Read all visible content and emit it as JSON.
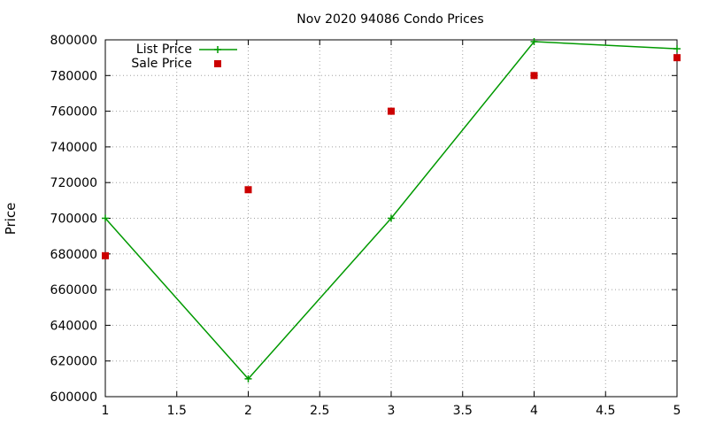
{
  "chart_data": {
    "type": "line",
    "title": "Nov 2020 94086 Condo Prices",
    "xlabel": "",
    "ylabel": "Price",
    "xlim": [
      1,
      5
    ],
    "ylim": [
      600000,
      800000
    ],
    "x_ticks": [
      "1",
      "1.5",
      "2",
      "2.5",
      "3",
      "3.5",
      "4",
      "4.5",
      "5"
    ],
    "y_ticks": [
      "600000",
      "620000",
      "640000",
      "660000",
      "680000",
      "700000",
      "720000",
      "740000",
      "760000",
      "780000",
      "800000"
    ],
    "grid": true,
    "legend_position": "top-left",
    "series": [
      {
        "name": "List Price",
        "style": "line+cross",
        "color": "#009900",
        "x": [
          1,
          2,
          3,
          4,
          5
        ],
        "y": [
          700000,
          610000,
          700000,
          799000,
          795000
        ]
      },
      {
        "name": "Sale Price",
        "style": "square-points",
        "color": "#cc0000",
        "x": [
          1,
          2,
          3,
          4,
          5
        ],
        "y": [
          679000,
          716000,
          760000,
          780000,
          790000
        ]
      }
    ]
  }
}
